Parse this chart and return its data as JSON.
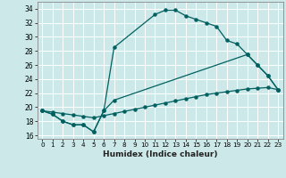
{
  "xlabel": "Humidex (Indice chaleur)",
  "ylabel": "",
  "background_color": "#cce8e8",
  "grid_color": "#b0d0d0",
  "line_color": "#006060",
  "xlim": [
    -0.5,
    23.5
  ],
  "ylim": [
    15.5,
    35.0
  ],
  "xticks": [
    0,
    1,
    2,
    3,
    4,
    5,
    6,
    7,
    8,
    9,
    10,
    11,
    12,
    13,
    14,
    15,
    16,
    17,
    18,
    19,
    20,
    21,
    22,
    23
  ],
  "yticks": [
    16,
    18,
    20,
    22,
    24,
    26,
    28,
    30,
    32,
    34
  ],
  "line1_x": [
    0,
    1,
    2,
    3,
    4,
    5,
    6,
    7,
    11,
    12,
    13,
    14,
    15,
    16,
    17,
    18,
    19,
    20,
    21,
    22,
    23
  ],
  "line1_y": [
    19.5,
    19.0,
    18.0,
    17.5,
    17.5,
    16.5,
    19.5,
    28.5,
    33.2,
    33.8,
    33.8,
    33.0,
    32.5,
    32.0,
    31.5,
    29.5,
    29.0,
    27.5,
    26.0,
    24.5,
    22.5
  ],
  "line2_x": [
    0,
    1,
    2,
    3,
    4,
    5,
    6,
    7,
    20,
    21,
    22,
    23
  ],
  "line2_y": [
    19.5,
    19.0,
    18.0,
    17.5,
    17.5,
    16.5,
    19.5,
    21.0,
    27.5,
    26.0,
    24.5,
    22.5
  ],
  "line3_x": [
    0,
    1,
    2,
    3,
    4,
    5,
    6,
    7,
    8,
    9,
    10,
    11,
    12,
    13,
    14,
    15,
    16,
    17,
    18,
    19,
    20,
    21,
    22,
    23
  ],
  "line3_y": [
    19.5,
    19.3,
    19.1,
    18.9,
    18.7,
    18.5,
    18.8,
    19.1,
    19.4,
    19.7,
    20.0,
    20.3,
    20.6,
    20.9,
    21.2,
    21.5,
    21.8,
    22.0,
    22.2,
    22.4,
    22.6,
    22.7,
    22.8,
    22.5
  ]
}
